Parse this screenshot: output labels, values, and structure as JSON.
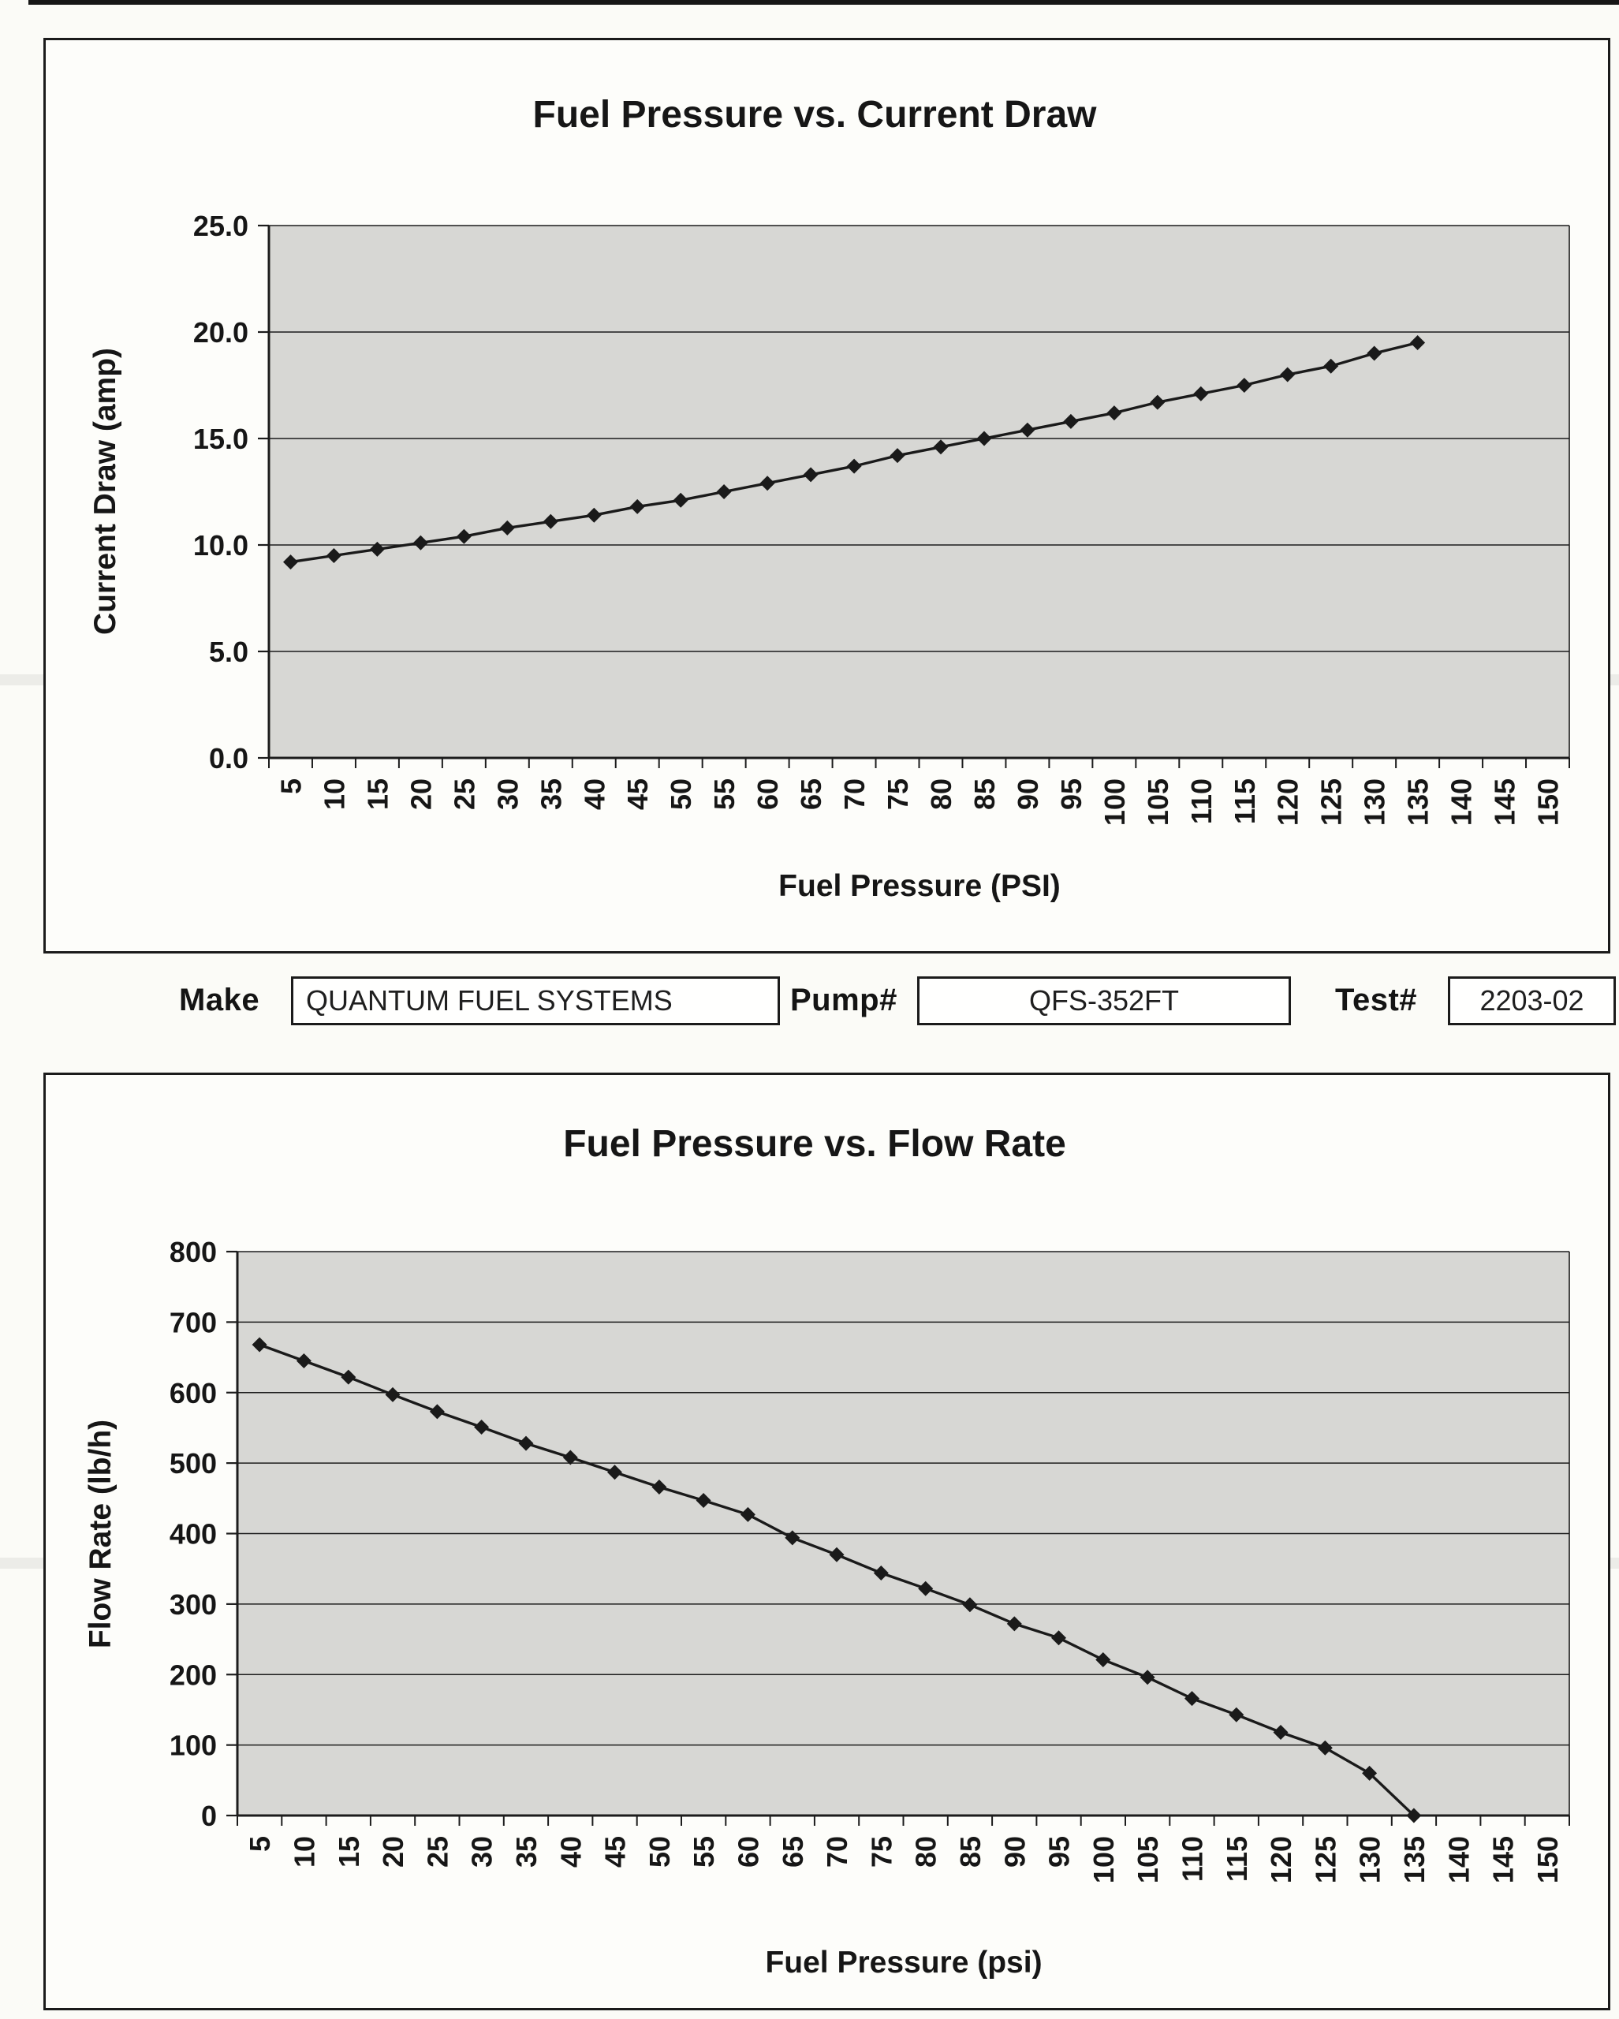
{
  "form": {
    "make_label": "Make",
    "make_value": "QUANTUM FUEL SYSTEMS",
    "pump_label": "Pump#",
    "pump_value": "QFS-352FT",
    "test_label": "Test#",
    "test_value": "2203-02"
  },
  "chart_data": [
    {
      "type": "line",
      "title": "Fuel Pressure vs. Current Draw",
      "xlabel": "Fuel Pressure (PSI)",
      "ylabel": "Current Draw (amp)",
      "x_tick_labels": [
        "5",
        "10",
        "15",
        "20",
        "25",
        "30",
        "35",
        "40",
        "45",
        "50",
        "55",
        "60",
        "65",
        "70",
        "75",
        "80",
        "85",
        "90",
        "95",
        "100",
        "105",
        "110",
        "115",
        "120",
        "125",
        "130",
        "135",
        "140",
        "145",
        "150"
      ],
      "y_tick_labels": [
        "0.0",
        "5.0",
        "10.0",
        "15.0",
        "20.0",
        "25.0"
      ],
      "ylim": [
        0,
        25
      ],
      "x": [
        5,
        10,
        15,
        20,
        25,
        30,
        35,
        40,
        45,
        50,
        55,
        60,
        65,
        70,
        75,
        80,
        85,
        90,
        95,
        100,
        105,
        110,
        115,
        120,
        125,
        130,
        135
      ],
      "values": [
        9.2,
        9.5,
        9.8,
        10.1,
        10.4,
        10.8,
        11.1,
        11.4,
        11.8,
        12.1,
        12.5,
        12.9,
        13.3,
        13.7,
        14.2,
        14.6,
        15.0,
        15.4,
        15.8,
        16.2,
        16.7,
        17.1,
        17.5,
        18.0,
        18.4,
        19.0,
        19.5
      ],
      "marker": "diamond",
      "grid": true,
      "legend": "none",
      "plot_bg": "#d7d7d4",
      "line_color": "#1a1a1a",
      "axis_color": "#1c1c1c",
      "text_color": "#161616"
    },
    {
      "type": "line",
      "title": "Fuel Pressure vs. Flow Rate",
      "xlabel": "Fuel Pressure (psi)",
      "ylabel": "Flow Rate (lb/h)",
      "x_tick_labels": [
        "5",
        "10",
        "15",
        "20",
        "25",
        "30",
        "35",
        "40",
        "45",
        "50",
        "55",
        "60",
        "65",
        "70",
        "75",
        "80",
        "85",
        "90",
        "95",
        "100",
        "105",
        "110",
        "115",
        "120",
        "125",
        "130",
        "135",
        "140",
        "145",
        "150"
      ],
      "y_tick_labels": [
        "0",
        "100",
        "200",
        "300",
        "400",
        "500",
        "600",
        "700",
        "800"
      ],
      "ylim": [
        0,
        800
      ],
      "x": [
        5,
        10,
        15,
        20,
        25,
        30,
        35,
        40,
        45,
        50,
        55,
        60,
        65,
        70,
        75,
        80,
        85,
        90,
        95,
        100,
        105,
        110,
        115,
        120,
        125,
        130,
        135
      ],
      "values": [
        668,
        645,
        622,
        597,
        573,
        551,
        528,
        508,
        487,
        466,
        447,
        427,
        394,
        370,
        344,
        322,
        299,
        272,
        252,
        221,
        196,
        166,
        143,
        118,
        96,
        60,
        0
      ],
      "marker": "diamond",
      "grid": true,
      "legend": "none",
      "plot_bg": "#d7d7d4",
      "line_color": "#1a1a1a",
      "axis_color": "#1c1c1c",
      "text_color": "#161616"
    }
  ]
}
